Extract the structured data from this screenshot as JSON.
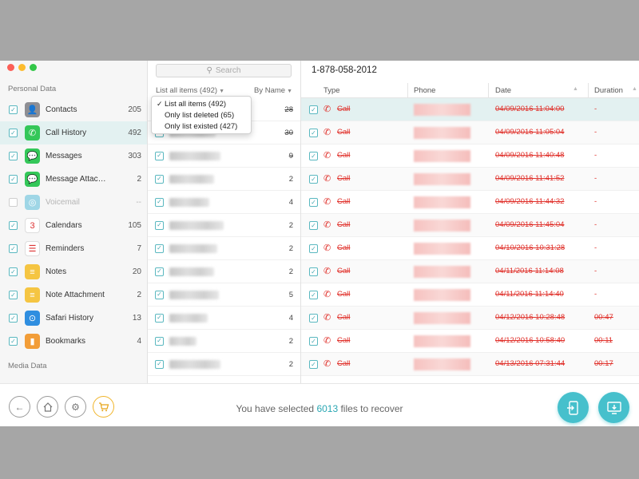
{
  "colors": {
    "accent": "#46c0cc",
    "deleted_red": "#e0302a",
    "selected_row": "#e3f1f1"
  },
  "sidebar": {
    "personal_section": "Personal Data",
    "media_section": "Media Data",
    "items": [
      {
        "label": "Contacts",
        "count": "205",
        "icon": "contacts-icon",
        "color": "#8e8e93",
        "checked": true
      },
      {
        "label": "Call History",
        "count": "492",
        "icon": "phone-icon",
        "color": "#34c759",
        "checked": true,
        "selected": true
      },
      {
        "label": "Messages",
        "count": "303",
        "icon": "messages-icon",
        "color": "#34c759",
        "checked": true
      },
      {
        "label": "Message Attac…",
        "count": "2",
        "icon": "message-attachment-icon",
        "color": "#34c759",
        "checked": true
      },
      {
        "label": "Voicemail",
        "count": "--",
        "icon": "voicemail-icon",
        "color": "#9fd6e6",
        "checked": false,
        "disabled": true
      },
      {
        "label": "Calendars",
        "count": "105",
        "icon": "calendar-icon",
        "color": "#ffffff",
        "checked": true
      },
      {
        "label": "Reminders",
        "count": "7",
        "icon": "reminders-icon",
        "color": "#ffffff",
        "checked": true
      },
      {
        "label": "Notes",
        "count": "20",
        "icon": "notes-icon",
        "color": "#f5c542",
        "checked": true
      },
      {
        "label": "Note Attachment",
        "count": "2",
        "icon": "note-attachment-icon",
        "color": "#f5c542",
        "checked": true
      },
      {
        "label": "Safari History",
        "count": "13",
        "icon": "safari-icon",
        "color": "#2f8ee0",
        "checked": true
      },
      {
        "label": "Bookmarks",
        "count": "4",
        "icon": "bookmarks-icon",
        "color": "#f29d38",
        "checked": true
      }
    ]
  },
  "middle": {
    "search_placeholder": "Search",
    "filter_label": "List all items (492)",
    "sort_label": "By Name",
    "dropdown": [
      {
        "label": "List all items (492)",
        "checked": true
      },
      {
        "label": "Only list deleted (65)",
        "checked": false
      },
      {
        "label": "Only list existed (427)",
        "checked": false
      }
    ],
    "rows": [
      {
        "count": "28",
        "strike": true
      },
      {
        "count": "30",
        "strike": true
      },
      {
        "count": "9",
        "strike": true
      },
      {
        "count": "2",
        "strike": false
      },
      {
        "count": "4",
        "strike": false
      },
      {
        "count": "2",
        "strike": false
      },
      {
        "count": "2",
        "strike": false
      },
      {
        "count": "2",
        "strike": false
      },
      {
        "count": "5",
        "strike": false
      },
      {
        "count": "4",
        "strike": false
      },
      {
        "count": "2",
        "strike": false
      },
      {
        "count": "2",
        "strike": false
      }
    ]
  },
  "detail": {
    "title": "1-878-058-2012",
    "columns": {
      "type": "Type",
      "phone": "Phone",
      "date": "Date",
      "duration": "Duration"
    },
    "rows": [
      {
        "type": "Call",
        "date": "04/09/2016 11:04:00",
        "duration": "-"
      },
      {
        "type": "Call",
        "date": "04/09/2016 11:05:04",
        "duration": "-"
      },
      {
        "type": "Call",
        "date": "04/09/2016 11:40:48",
        "duration": "-"
      },
      {
        "type": "Call",
        "date": "04/09/2016 11:41:52",
        "duration": "-"
      },
      {
        "type": "Call",
        "date": "04/09/2016 11:44:32",
        "duration": "-"
      },
      {
        "type": "Call",
        "date": "04/09/2016 11:45:04",
        "duration": "-"
      },
      {
        "type": "Call",
        "date": "04/10/2016 10:31:28",
        "duration": "-"
      },
      {
        "type": "Call",
        "date": "04/11/2016 11:14:08",
        "duration": "-"
      },
      {
        "type": "Call",
        "date": "04/11/2016 11:14:40",
        "duration": "-"
      },
      {
        "type": "Call",
        "date": "04/12/2016 10:28:48",
        "duration": "00:47"
      },
      {
        "type": "Call",
        "date": "04/12/2016 10:58:40",
        "duration": "00:11"
      },
      {
        "type": "Call",
        "date": "04/13/2016 07:31:44",
        "duration": "00:17"
      }
    ]
  },
  "footer": {
    "status_prefix": "You have selected ",
    "selected_count": "6013",
    "status_suffix": " files to recover"
  }
}
